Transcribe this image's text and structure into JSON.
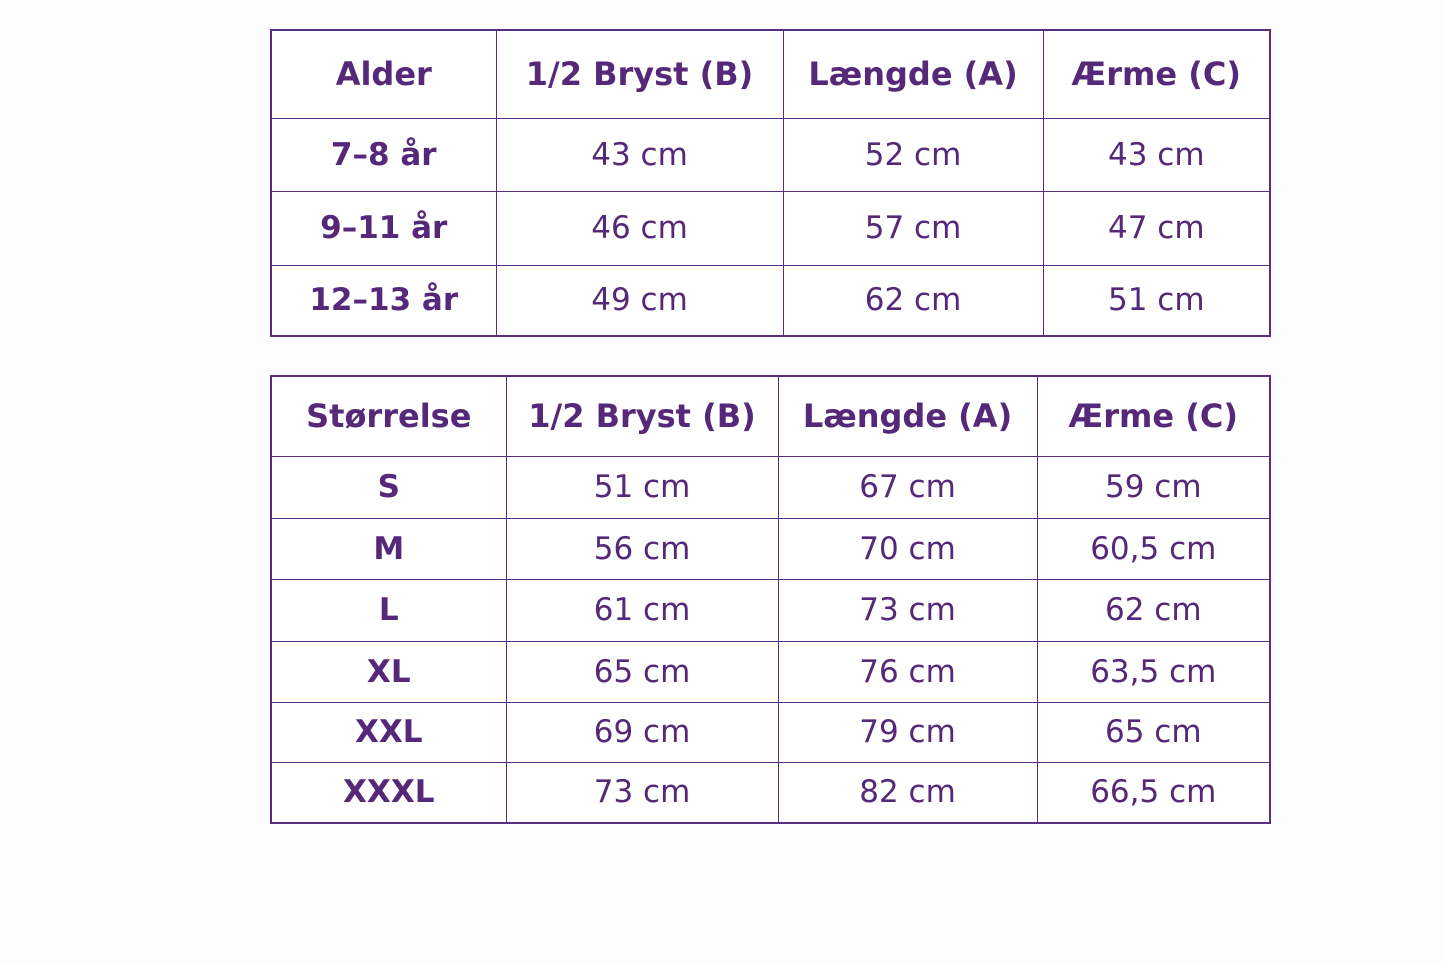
{
  "age_table": {
    "headers": [
      "Alder",
      "1/2 Bryst (B)",
      "Længde (A)",
      "Ærme (C)"
    ],
    "rows": [
      [
        "7–8 år",
        "43 cm",
        "52 cm",
        "43 cm"
      ],
      [
        "9–11 år",
        "46 cm",
        "57 cm",
        "47 cm"
      ],
      [
        "12–13 år",
        "49 cm",
        "62 cm",
        "51 cm"
      ]
    ]
  },
  "size_table": {
    "headers": [
      "Størrelse",
      "1/2 Bryst (B)",
      "Længde (A)",
      "Ærme (C)"
    ],
    "rows": [
      [
        "S",
        "51 cm",
        "67 cm",
        "59 cm"
      ],
      [
        "M",
        "56 cm",
        "70 cm",
        "60,5 cm"
      ],
      [
        "L",
        "61 cm",
        "73 cm",
        "62 cm"
      ],
      [
        "XL",
        "65 cm",
        "76 cm",
        "63,5 cm"
      ],
      [
        "XXL",
        "69 cm",
        "79 cm",
        "65 cm"
      ],
      [
        "XXXL",
        "73 cm",
        "82 cm",
        "66,5 cm"
      ]
    ]
  },
  "colors": {
    "accent": "#5a2d82"
  }
}
